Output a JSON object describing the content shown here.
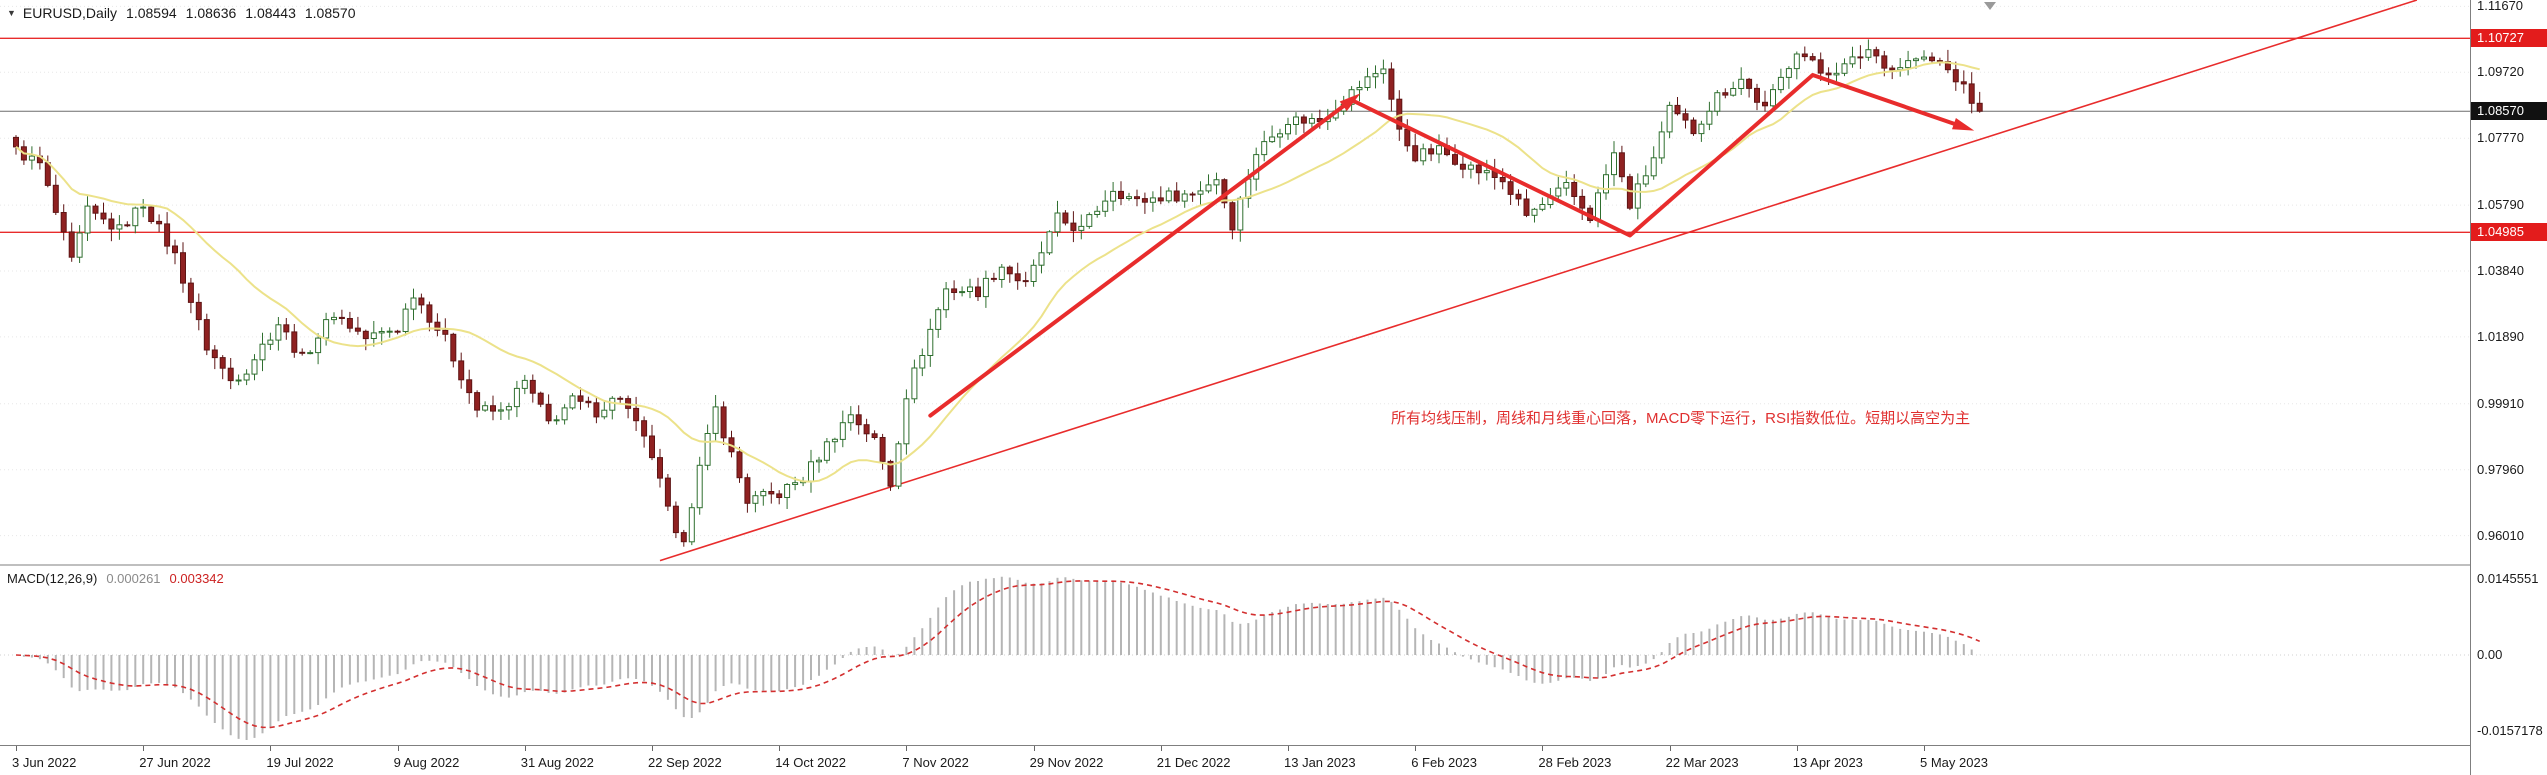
{
  "header": {
    "dropdown_icon": "▼",
    "symbol": "EURUSD,Daily",
    "open": "1.08594",
    "high": "1.08636",
    "low": "1.08443",
    "close": "1.08570"
  },
  "annotation": {
    "text": "所有均线压制，周线和月线重心回落，MACD零下运行，RSI指数低位。短期以高空为主"
  },
  "colors": {
    "background": "#ffffff",
    "bull": "#ffffff",
    "bull_border": "#2f6f2f",
    "bear": "#8f2121",
    "bear_border": "#5e1414",
    "ma": "#ece28a",
    "trend_red": "#e82c2c",
    "current_line": "#6d6d6d",
    "macd_bars": "#b5b5b5",
    "macd_signal": "#d32f2f",
    "badge_red": "#e31c1c",
    "badge_current": "#111111",
    "annotation": "#e03030",
    "grid": "#e7e7e7"
  },
  "chart_data": {
    "type": "candlestick",
    "title": "EURUSD Daily with MACD(12,26,9)",
    "symbol": "EURUSD",
    "timeframe": "Daily",
    "ohlc_current": {
      "open": 1.08594,
      "high": 1.08636,
      "low": 1.08443,
      "close": 1.0857
    },
    "y_range": {
      "top": 1.1186,
      "bottom": 0.9514
    },
    "y_grid_labels": [
      "1.11670",
      "1.09720",
      "1.07770",
      "1.05790",
      "1.03840",
      "1.01890",
      "0.99910",
      "0.97960",
      "0.96010"
    ],
    "x_labels": [
      "3 Jun 2022",
      "27 Jun 2022",
      "19 Jul 2022",
      "9 Aug 2022",
      "31 Aug 2022",
      "22 Sep 2022",
      "14 Oct 2022",
      "7 Nov 2022",
      "29 Nov 2022",
      "21 Dec 2022",
      "13 Jan 2023",
      "6 Feb 2023",
      "28 Feb 2023",
      "22 Mar 2023",
      "13 Apr 2023",
      "5 May 2023"
    ],
    "days_per_x_label": 16,
    "visible_days": 248,
    "price_levels": [
      {
        "value": 1.10727,
        "label": "1.10727",
        "style": "red-line"
      },
      {
        "value": 1.0857,
        "label": "1.08570",
        "style": "current"
      },
      {
        "value": 1.04985,
        "label": "1.04985",
        "style": "red-line"
      }
    ],
    "close_anchors": [
      [
        0,
        1.074
      ],
      [
        3,
        1.07
      ],
      [
        7,
        1.041
      ],
      [
        9,
        1.056
      ],
      [
        13,
        1.0505
      ],
      [
        16,
        1.0585
      ],
      [
        20,
        1.043
      ],
      [
        24,
        1.016
      ],
      [
        27,
        1.006
      ],
      [
        29,
        1.0095
      ],
      [
        33,
        1.023
      ],
      [
        36,
        1.0125
      ],
      [
        40,
        1.026
      ],
      [
        44,
        1.0185
      ],
      [
        48,
        1.0215
      ],
      [
        50,
        1.032
      ],
      [
        54,
        1.018
      ],
      [
        58,
        0.9975
      ],
      [
        61,
        0.9965
      ],
      [
        64,
        1.0055
      ],
      [
        67,
        0.9935
      ],
      [
        70,
        1.0
      ],
      [
        73,
        0.997
      ],
      [
        76,
        1.0015
      ],
      [
        80,
        0.9838
      ],
      [
        83,
        0.9592
      ],
      [
        84,
        0.96
      ],
      [
        86,
        0.98
      ],
      [
        88,
        0.9975
      ],
      [
        92,
        0.9705
      ],
      [
        96,
        0.9725
      ],
      [
        99,
        0.9772
      ],
      [
        102,
        0.987
      ],
      [
        105,
        0.9962
      ],
      [
        108,
        0.9882
      ],
      [
        110,
        0.9755
      ],
      [
        112,
        1.002
      ],
      [
        115,
        1.021
      ],
      [
        117,
        1.033
      ],
      [
        121,
        1.0325
      ],
      [
        124,
        1.04
      ],
      [
        127,
        1.034
      ],
      [
        131,
        1.0538
      ],
      [
        134,
        1.0505
      ],
      [
        138,
        1.063
      ],
      [
        141,
        1.0588
      ],
      [
        144,
        1.0605
      ],
      [
        148,
        1.0612
      ],
      [
        151,
        1.066
      ],
      [
        153,
        1.0522
      ],
      [
        156,
        1.0735
      ],
      [
        160,
        1.0832
      ],
      [
        164,
        1.083
      ],
      [
        168,
        1.0912
      ],
      [
        172,
        1.099
      ],
      [
        174,
        1.0795
      ],
      [
        176,
        1.0725
      ],
      [
        179,
        1.0742
      ],
      [
        183,
        1.069
      ],
      [
        187,
        1.0652
      ],
      [
        190,
        1.0548
      ],
      [
        192,
        1.0578
      ],
      [
        195,
        1.0632
      ],
      [
        198,
        1.0545
      ],
      [
        201,
        1.073
      ],
      [
        203,
        1.058
      ],
      [
        206,
        1.0718
      ],
      [
        208,
        1.0858
      ],
      [
        211,
        1.08
      ],
      [
        214,
        1.0902
      ],
      [
        217,
        1.0952
      ],
      [
        220,
        1.0862
      ],
      [
        224,
        1.1042
      ],
      [
        227,
        1.0972
      ],
      [
        230,
        1.0988
      ],
      [
        233,
        1.104
      ],
      [
        236,
        1.0982
      ],
      [
        239,
        1.1012
      ],
      [
        242,
        1.1
      ],
      [
        244,
        1.0955
      ],
      [
        247,
        1.0857
      ]
    ],
    "moving_average_period": 20,
    "trendline_day_price": [
      [
        81,
        0.9527
      ],
      [
        302,
        1.1186
      ]
    ],
    "zigzag_day_price": [
      [
        115,
        0.9956
      ],
      [
        168,
        1.089
      ],
      [
        203,
        1.0489
      ],
      [
        226,
        1.0964
      ],
      [
        245,
        1.081
      ]
    ],
    "zigzag_arrowheads": [
      1,
      4
    ],
    "annotation_pos": {
      "day": 173,
      "price": 0.9955
    },
    "macd": {
      "label": "MACD(12,26,9)",
      "fast": 12,
      "slow": 26,
      "signal": 9,
      "value_main": "0.000261",
      "value_signal": "0.003342",
      "axis_max": "0.0145551",
      "axis_zero": "0.00",
      "axis_min": "-0.0157178"
    }
  }
}
